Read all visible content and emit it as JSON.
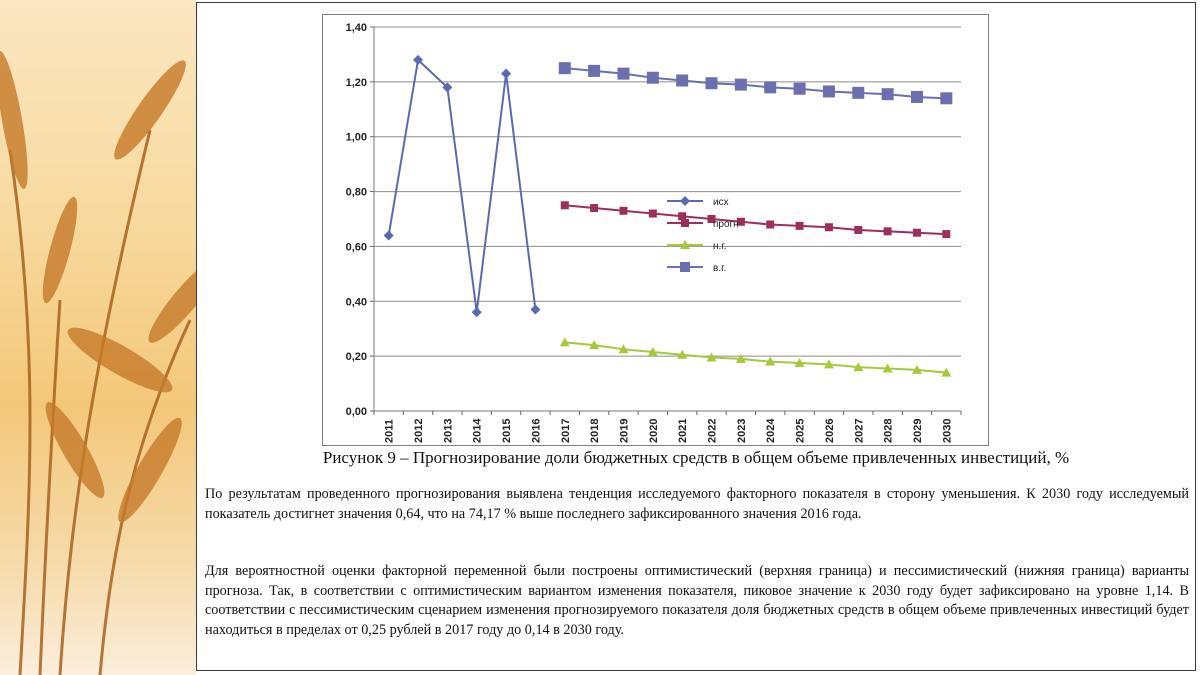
{
  "chart_data": {
    "type": "line",
    "categories": [
      "2011",
      "2012",
      "2013",
      "2014",
      "2015",
      "2016",
      "2017",
      "2018",
      "2019",
      "2020",
      "2021",
      "2022",
      "2023",
      "2024",
      "2025",
      "2026",
      "2027",
      "2028",
      "2029",
      "2030"
    ],
    "y_ticks": [
      "0,00",
      "0,20",
      "0,40",
      "0,60",
      "0,80",
      "1,00",
      "1,20",
      "1,40"
    ],
    "ylim": [
      0,
      1.4
    ],
    "grid": true,
    "legend_position": "right",
    "series": [
      {
        "name": "исх",
        "color": "#5b6ab0",
        "marker": "diamond",
        "values": [
          0.64,
          1.28,
          1.18,
          0.36,
          1.23,
          0.37,
          null,
          null,
          null,
          null,
          null,
          null,
          null,
          null,
          null,
          null,
          null,
          null,
          null,
          null
        ]
      },
      {
        "name": "прогн",
        "color": "#9c2f5e",
        "marker": "square",
        "values": [
          null,
          null,
          null,
          null,
          null,
          null,
          0.75,
          0.74,
          0.73,
          0.72,
          0.71,
          0.7,
          0.69,
          0.68,
          0.675,
          0.67,
          0.66,
          0.655,
          0.65,
          0.645
        ]
      },
      {
        "name": "н.г.",
        "color": "#a6c93a",
        "marker": "triangle",
        "values": [
          null,
          null,
          null,
          null,
          null,
          null,
          0.25,
          0.24,
          0.225,
          0.215,
          0.205,
          0.195,
          0.19,
          0.18,
          0.175,
          0.17,
          0.16,
          0.155,
          0.15,
          0.14
        ]
      },
      {
        "name": "в.г.",
        "color": "#6b6fb0",
        "marker": "square",
        "values": [
          null,
          null,
          null,
          null,
          null,
          null,
          1.25,
          1.24,
          1.23,
          1.215,
          1.205,
          1.195,
          1.19,
          1.18,
          1.175,
          1.165,
          1.16,
          1.155,
          1.145,
          1.14
        ]
      }
    ]
  },
  "caption": "Рисунок 9 – Прогнозирование доли бюджетных средств в общем объеме привлеченных инвестиций, %",
  "paragraphs": [
    "По результатам проведенного прогнозирования выявлена тенденция  исследуемого факторного показателя в сторону уменьшения. К 2030 году исследуемый показатель достигнет значения 0,64, что на 74,17 % выше последнего зафиксированного значения 2016 года.",
    "Для вероятностной оценки факторной переменной были построены оптимистический (верхняя граница) и пессимистический (нижняя граница) варианты прогноза. Так, в соответствии с оптимистическим вариантом изменения показателя, пиковое значение к 2030 году будет зафиксировано на уровне  1,14.  В соответствии с пессимистическим сценарием изменения прогнозируемого показателя доля бюджетных средств в общем объеме привлеченных инвестиций будет находиться в пределах от 0,25 рублей в 2017 году до 0,14 в 2030 году."
  ]
}
